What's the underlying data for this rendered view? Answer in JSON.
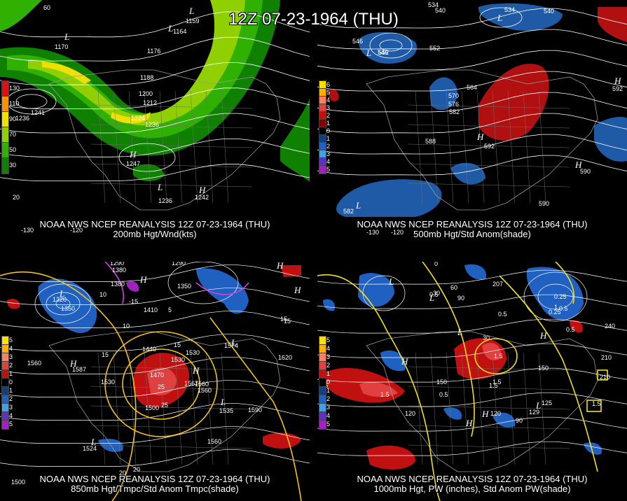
{
  "title": "12Z 07-23-1964 (THU)",
  "panels": [
    {
      "id": "tl",
      "caption_line1": "NOAA NWS NCEP REANALYSIS 12Z 07-23-1964 (THU)",
      "caption_line2": "200mb Hgt/Wnd(kts)",
      "legend": [
        "130",
        "110",
        "90",
        "70",
        "50",
        "30"
      ],
      "legend_colors": [
        "#e01010",
        "#ff9000",
        "#f0e000",
        "#90d000",
        "#30b000",
        "#108000"
      ],
      "contour_labels": [
        "1170",
        "1176",
        "1188",
        "1200",
        "1212",
        "1224",
        "1236",
        "1236",
        "1241",
        "1247",
        "1236",
        "1242",
        "1164",
        "1159"
      ],
      "lon_labels": [
        "-130",
        "-120",
        "20",
        "60"
      ],
      "pressure_centers": [
        "L",
        "L",
        "L",
        "H",
        "H",
        "L"
      ]
    },
    {
      "id": "tr",
      "caption_line1": "NOAA NWS NCEP REANALYSIS 12Z 07-23-1964 (THU)",
      "caption_line2": "500mb Hgt/Std Anom(shade)",
      "legend": [
        "6",
        "5",
        "4",
        "3",
        "2",
        "1",
        "0",
        "1",
        "2",
        "3",
        "4",
        "5"
      ],
      "legend_colors": [
        "#ffe000",
        "#ffb000",
        "#ff8060",
        "#e04040",
        "#c01010",
        "#800000",
        "#000000",
        "#104080",
        "#2060c0",
        "#40a0e0",
        "#6030c0",
        "#a020c0"
      ],
      "contour_labels": [
        "534",
        "540",
        "546",
        "552",
        "552",
        "546",
        "534",
        "540",
        "564",
        "570",
        "576",
        "582",
        "588",
        "592",
        "590",
        "590",
        "582",
        "592"
      ],
      "lon_labels": [
        "-120",
        "-130"
      ],
      "pressure_centers": [
        "L",
        "L",
        "H",
        "H",
        "L",
        "H"
      ]
    },
    {
      "id": "bl",
      "caption_line1": "NOAA NWS NCEP REANALYSIS 12Z 07-23-1964 (THU)",
      "caption_line2": "850mb Hgt/Tmpc/Std Anom Tmpc(shade)",
      "legend": [
        "5",
        "4",
        "3",
        "2",
        "1",
        "0",
        "1",
        "2",
        "3",
        "4",
        "5"
      ],
      "legend_colors": [
        "#ffe000",
        "#ffb000",
        "#ff8060",
        "#e04040",
        "#c01010",
        "#000000",
        "#104080",
        "#2060c0",
        "#40a0e0",
        "#6030c0",
        "#a020c0"
      ],
      "contour_labels": [
        "1290",
        "1380",
        "1290",
        "1320",
        "1350",
        "1380",
        "1410",
        "1350",
        "1440",
        "1470",
        "1500",
        "1530",
        "1560",
        "1530",
        "1560",
        "1620",
        "1590",
        "1560",
        "1500",
        "1560",
        "1530",
        "1574",
        "1587",
        "1567",
        "1535",
        "1524"
      ],
      "temp_labels": [
        "10",
        "15",
        "15",
        "20",
        "25",
        "15",
        "10",
        "-15",
        "5",
        "25",
        "20",
        "15"
      ],
      "pressure_centers": [
        "L",
        "L",
        "H",
        "H",
        "H",
        "L",
        "L",
        "H",
        "H"
      ]
    },
    {
      "id": "br",
      "caption_line1": "NOAA NWS NCEP REANALYSIS 12Z 07-23-1964 (THU)",
      "caption_line2": "1000mb Hgt, PW (inches), Std Anom PW(shade)",
      "legend": [
        "5",
        "4",
        "3",
        "2",
        "1",
        "0",
        "1",
        "2",
        "3",
        "4",
        "5"
      ],
      "legend_colors": [
        "#ffe000",
        "#ffb000",
        "#ff8060",
        "#e04040",
        "#c01010",
        "#000000",
        "#104080",
        "#2060c0",
        "#40a0e0",
        "#6030c0",
        "#a020c0"
      ],
      "contour_labels": [
        "0",
        "30",
        "60",
        "90",
        "30",
        "0.5",
        "1.5",
        "1.5",
        "1.5",
        "0.5",
        "0.5",
        "1",
        "1.5",
        "150",
        "120",
        "150",
        "120",
        "90",
        "210",
        "240",
        "210",
        "0.25",
        "0.25",
        "1.5",
        "129",
        "125",
        "207",
        "0.5",
        "0.5",
        "1.5"
      ],
      "pressure_centers": [
        "L",
        "L",
        "H",
        "L",
        "H",
        "H",
        "L",
        "H"
      ]
    }
  ]
}
